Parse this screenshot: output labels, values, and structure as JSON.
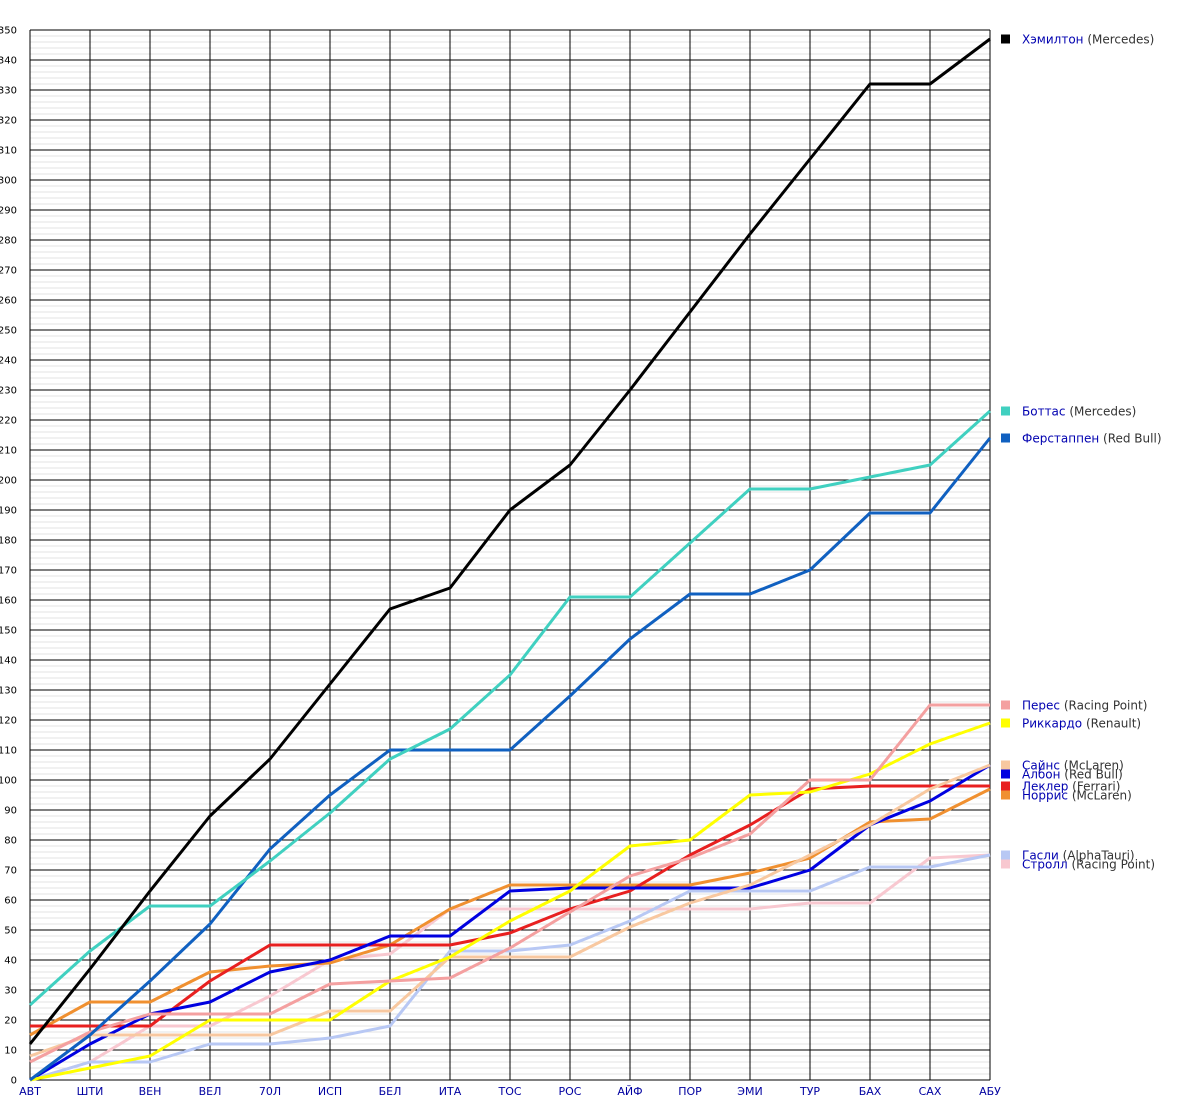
{
  "chart_data": {
    "type": "line",
    "categories": [
      "АВТ",
      "ШТИ",
      "ВЕН",
      "ВЕЛ",
      "70Л",
      "ИСП",
      "БЕЛ",
      "ИТА",
      "ТОС",
      "РОС",
      "АЙФ",
      "ПОР",
      "ЭМИ",
      "ТУР",
      "БАХ",
      "САХ",
      "АБУ"
    ],
    "ylim": [
      0,
      350
    ],
    "y_major_step": 10,
    "y_minor_step": 2,
    "grid": true,
    "legend_placement": "right",
    "series": [
      {
        "name": "Хэмилтон",
        "team": "(Mercedes)",
        "color": "#000000",
        "values": [
          12,
          37,
          63,
          88,
          107,
          132,
          157,
          164,
          190,
          205,
          230,
          256,
          282,
          307,
          332,
          332,
          347
        ]
      },
      {
        "name": "Боттас",
        "team": "(Mercedes)",
        "color": "#40d0c0",
        "values": [
          25,
          43,
          58,
          58,
          73,
          89,
          107,
          117,
          135,
          161,
          161,
          179,
          197,
          197,
          201,
          205,
          223
        ]
      },
      {
        "name": "Ферстаппен",
        "team": "(Red Bull)",
        "color": "#1060c0",
        "values": [
          0,
          15,
          33,
          52,
          77,
          95,
          110,
          110,
          110,
          128,
          147,
          162,
          162,
          170,
          189,
          189,
          214
        ]
      },
      {
        "name": "Перес",
        "team": "(Racing Point)",
        "color": "#f4a0a0",
        "values": [
          6,
          16,
          22,
          22,
          22,
          32,
          33,
          34,
          44,
          56,
          68,
          74,
          82,
          100,
          100,
          125,
          125
        ]
      },
      {
        "name": "Риккардо",
        "team": "(Renault)",
        "color": "#ffff00",
        "values": [
          0,
          4,
          8,
          20,
          20,
          20,
          33,
          41,
          53,
          63,
          78,
          80,
          95,
          96,
          102,
          112,
          119
        ]
      },
      {
        "name": "Сайнс",
        "team": "(McLaren)",
        "color": "#f8c8a0",
        "values": [
          8,
          15,
          15,
          15,
          15,
          23,
          23,
          41,
          41,
          41,
          51,
          59,
          65,
          75,
          85,
          97,
          105
        ]
      },
      {
        "name": "Албон",
        "team": "(Red Bull)",
        "color": "#0000e0",
        "values": [
          0,
          12,
          22,
          26,
          36,
          40,
          48,
          48,
          63,
          64,
          64,
          64,
          64,
          70,
          85,
          93,
          105
        ]
      },
      {
        "name": "Леклер",
        "team": "(Ferrari)",
        "color": "#e82020",
        "values": [
          18,
          18,
          18,
          33,
          45,
          45,
          45,
          45,
          49,
          57,
          63,
          75,
          85,
          97,
          98,
          98,
          98
        ]
      },
      {
        "name": "Норрис",
        "team": "(McLaren)",
        "color": "#f09030",
        "values": [
          15,
          26,
          26,
          36,
          38,
          39,
          45,
          57,
          65,
          65,
          65,
          65,
          69,
          74,
          86,
          87,
          97
        ]
      },
      {
        "name": "Гасли",
        "team": "(AlphaTauri)",
        "color": "#b8c8f4",
        "values": [
          0,
          6,
          6,
          12,
          12,
          14,
          18,
          43,
          43,
          45,
          53,
          63,
          63,
          63,
          71,
          71,
          75
        ]
      },
      {
        "name": "Стролл",
        "team": "(Racing Point)",
        "color": "#f8c8d0",
        "values": [
          0,
          6,
          18,
          18,
          28,
          40,
          42,
          57,
          57,
          57,
          57,
          57,
          57,
          59,
          59,
          74,
          75
        ]
      }
    ],
    "legend_order": [
      0,
      1,
      2,
      3,
      4,
      5,
      6,
      7,
      8,
      9,
      10
    ]
  }
}
